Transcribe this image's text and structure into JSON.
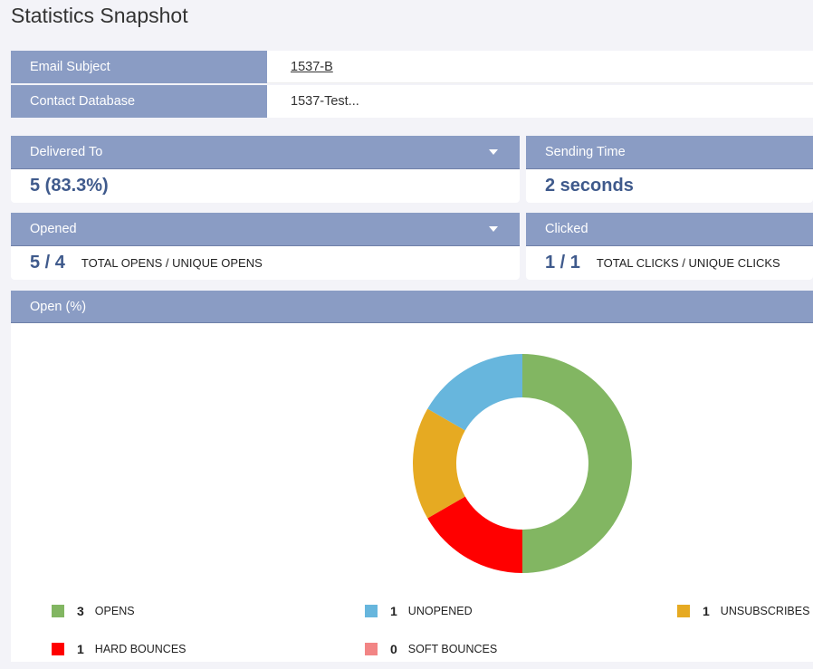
{
  "page": {
    "title": "Statistics Snapshot"
  },
  "info": {
    "rows": [
      {
        "label": "Email Subject",
        "value": "1537-B"
      },
      {
        "label": "Contact Database",
        "value": "1537-Test..."
      }
    ]
  },
  "stats": {
    "delivered": {
      "label": "Delivered To",
      "value": "5 (83.3%)"
    },
    "sending": {
      "label": "Sending Time",
      "value": "2 seconds"
    },
    "opened": {
      "label": "Opened",
      "value": "5 / 4",
      "caption": "TOTAL OPENS / UNIQUE OPENS"
    },
    "clicked": {
      "label": "Clicked",
      "value": "1 / 1",
      "caption": "TOTAL CLICKS / UNIQUE CLICKS"
    }
  },
  "chart_panel": {
    "label": "Open (%)"
  },
  "chart_data": {
    "type": "pie",
    "donut": true,
    "categories": [
      "OPENS",
      "UNOPENED",
      "UNSUBSCRIBES",
      "HARD BOUNCES",
      "SOFT BOUNCES"
    ],
    "values": [
      3,
      1,
      1,
      1,
      0
    ],
    "colors": [
      "#82b662",
      "#67b6dd",
      "#e6aa22",
      "#ff0000",
      "#f28585"
    ],
    "legend": "bottom"
  },
  "legend": [
    {
      "count": "3",
      "label": "OPENS",
      "color": "#82b662"
    },
    {
      "count": "1",
      "label": "UNOPENED",
      "color": "#67b6dd"
    },
    {
      "count": "1",
      "label": "UNSUBSCRIBES",
      "color": "#e6aa22"
    },
    {
      "count": "1",
      "label": "HARD BOUNCES",
      "color": "#ff0000"
    },
    {
      "count": "0",
      "label": "SOFT BOUNCES",
      "color": "#f28585"
    }
  ]
}
